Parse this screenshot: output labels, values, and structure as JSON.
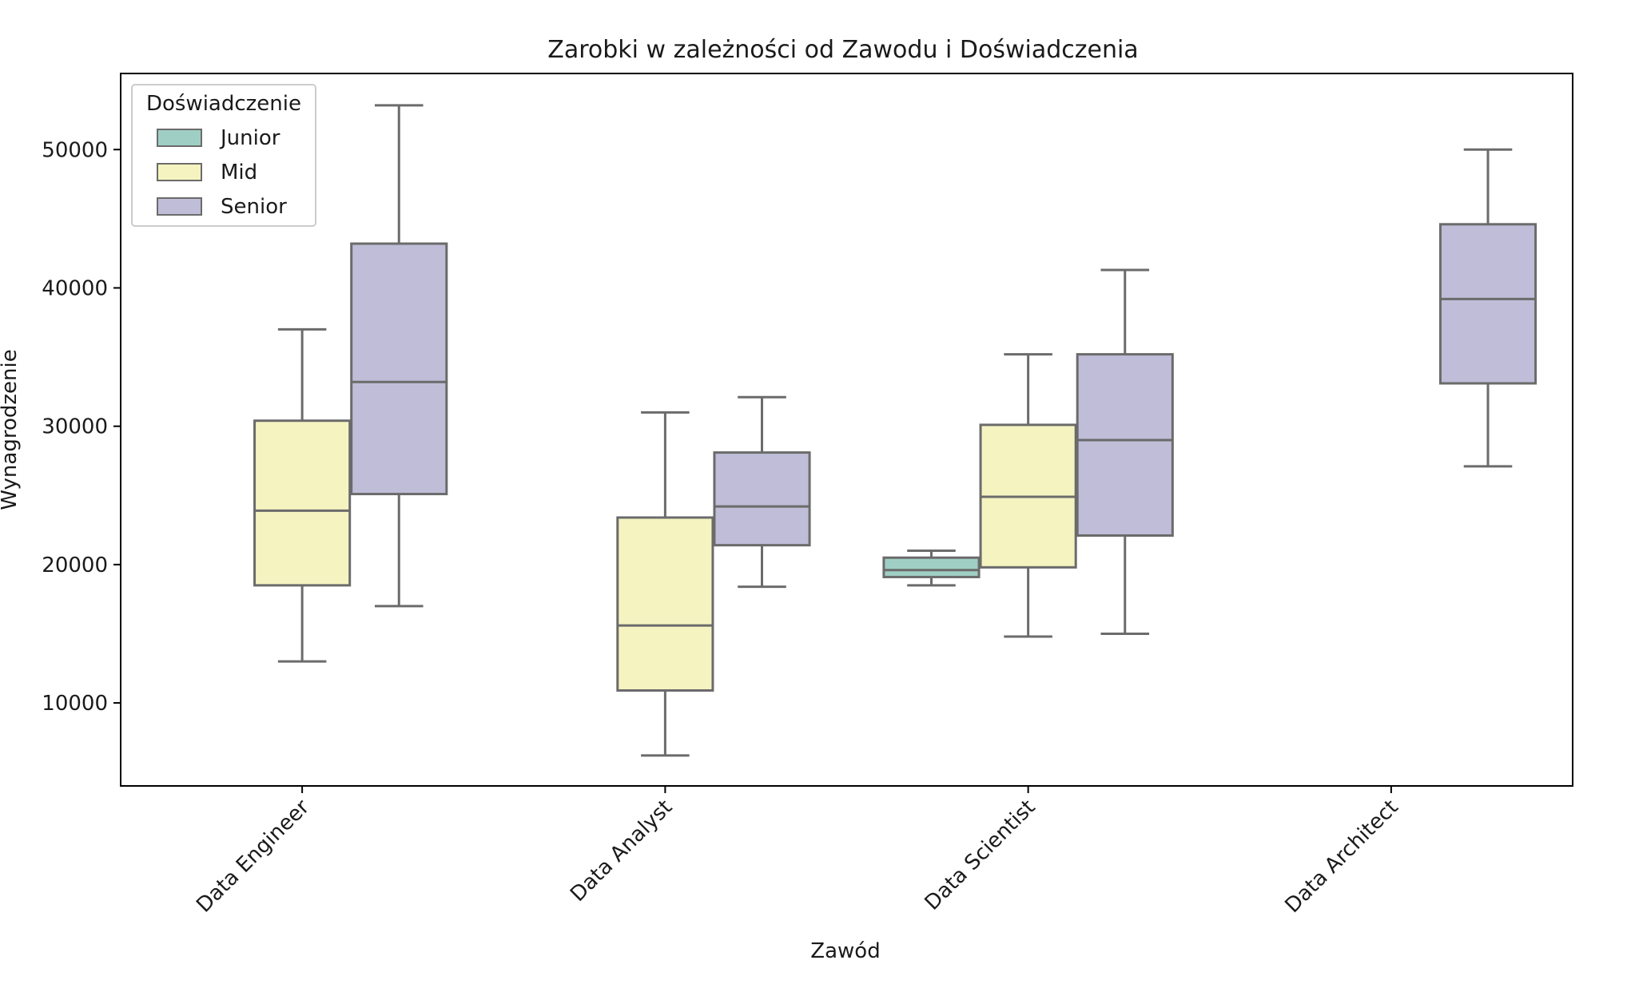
{
  "chart_data": {
    "type": "box",
    "title": "Zarobki w zależności od Zawodu i Doświadczenia",
    "xlabel": "Zawód",
    "ylabel": "Wynagrodzenie",
    "categories": [
      "Data Engineer",
      "Data Analyst",
      "Data Scientist",
      "Data Architect"
    ],
    "ylim": [
      4000,
      55500
    ],
    "yticks": [
      10000,
      20000,
      30000,
      40000,
      50000
    ],
    "grid": false,
    "legend": {
      "title": "Doświadczenie",
      "placement": "top-left"
    },
    "series": [
      {
        "name": "Junior",
        "color": "#9fcfc4",
        "boxes": [
          null,
          null,
          {
            "whisker_low": 18500,
            "q1": 19100,
            "median": 19600,
            "q3": 20500,
            "whisker_high": 21000
          },
          null
        ]
      },
      {
        "name": "Mid",
        "color": "#f5f4c1",
        "boxes": [
          {
            "whisker_low": 13000,
            "q1": 18500,
            "median": 23900,
            "q3": 30400,
            "whisker_high": 37000
          },
          {
            "whisker_low": 6200,
            "q1": 10900,
            "median": 15600,
            "q3": 23400,
            "whisker_high": 31000
          },
          {
            "whisker_low": 14800,
            "q1": 19800,
            "median": 24900,
            "q3": 30100,
            "whisker_high": 35200
          },
          null
        ]
      },
      {
        "name": "Senior",
        "color": "#bfbdd7",
        "boxes": [
          {
            "whisker_low": 17000,
            "q1": 25100,
            "median": 33200,
            "q3": 43200,
            "whisker_high": 53200
          },
          {
            "whisker_low": 18400,
            "q1": 21400,
            "median": 24200,
            "q3": 28100,
            "whisker_high": 32100
          },
          {
            "whisker_low": 15000,
            "q1": 22100,
            "median": 29000,
            "q3": 35200,
            "whisker_high": 41300
          },
          {
            "whisker_low": 27100,
            "q1": 33100,
            "median": 39200,
            "q3": 44600,
            "whisker_high": 50000
          }
        ]
      }
    ]
  }
}
